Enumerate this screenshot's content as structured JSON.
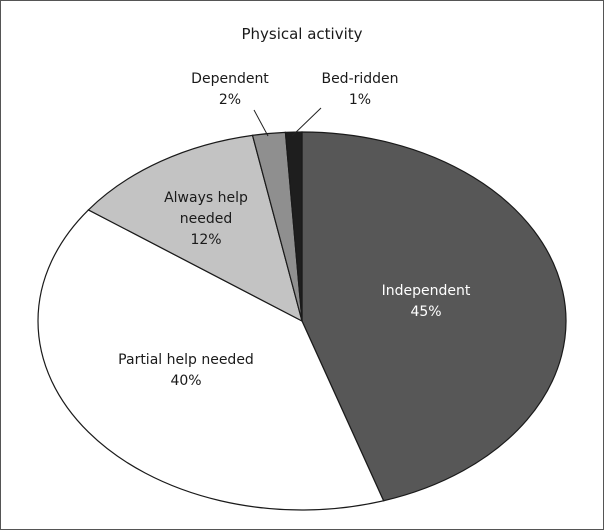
{
  "chart_data": {
    "type": "pie",
    "title": "Physical activity",
    "slices": [
      {
        "label_lines": [
          "Independent"
        ],
        "value": 45,
        "value_label": "45%",
        "color": "#575757"
      },
      {
        "label_lines": [
          "Partial help needed"
        ],
        "value": 40,
        "value_label": "40%",
        "color": "#ffffff"
      },
      {
        "label_lines": [
          "Always help",
          "needed"
        ],
        "value": 12,
        "value_label": "12%",
        "color": "#c3c3c3"
      },
      {
        "label_lines": [
          "Dependent"
        ],
        "value": 2,
        "value_label": "2%",
        "color": "#8f8f8f"
      },
      {
        "label_lines": [
          "Bed-ridden"
        ],
        "value": 1,
        "value_label": "1%",
        "color": "#1e1e1e"
      }
    ],
    "legend": "none"
  }
}
